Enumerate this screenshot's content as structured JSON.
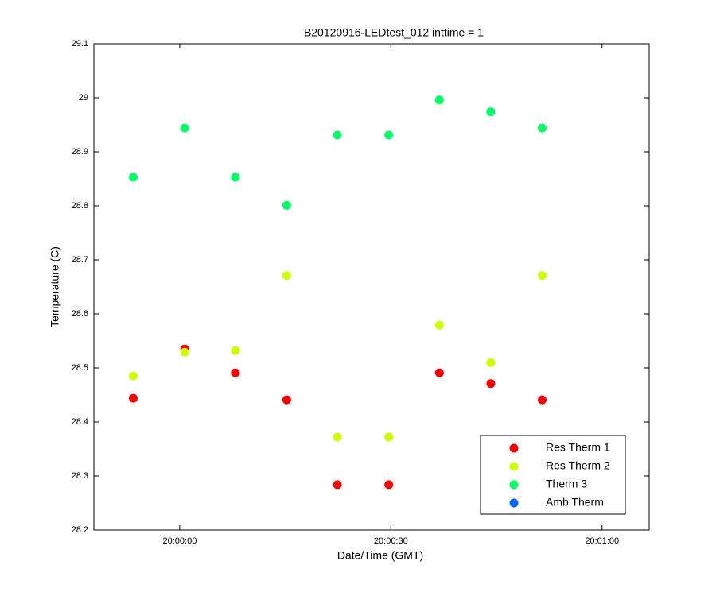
{
  "chart_data": {
    "type": "scatter",
    "title": "B20120916-LEDtest_012 inttime = 1",
    "xlabel": "Date/Time (GMT)",
    "ylabel": "Temperature (C)",
    "x": [
      71993.4,
      72000.7,
      72007.9,
      72015.2,
      72022.4,
      72029.7,
      72036.9,
      72044.2,
      72051.5
    ],
    "series": [
      {
        "name": "Res Therm 1",
        "color": "#ff0000",
        "values": [
          28.444,
          28.535,
          28.491,
          28.441,
          28.284,
          28.284,
          28.491,
          28.471,
          28.441
        ]
      },
      {
        "name": "Res Therm 2",
        "color": "#ccff00",
        "values": [
          28.485,
          28.529,
          28.532,
          28.671,
          28.372,
          28.372,
          28.579,
          28.51,
          28.671
        ]
      },
      {
        "name": "Therm 3",
        "color": "#00ff66",
        "values": [
          28.853,
          28.944,
          28.853,
          28.801,
          28.931,
          28.931,
          28.996,
          28.974,
          28.944
        ]
      },
      {
        "name": "Amb Therm",
        "color": "#0066ff",
        "values": [
          null,
          null,
          null,
          null,
          null,
          null,
          null,
          null,
          null
        ]
      }
    ],
    "xlim": [
      71987.8,
      72066.7
    ],
    "xticks": [
      {
        "value": 72000,
        "label": "20:00:00"
      },
      {
        "value": 72030,
        "label": "20:00:30"
      },
      {
        "value": 72060,
        "label": "20:01:00"
      }
    ],
    "ylim": [
      28.2,
      29.1
    ],
    "yticks": [
      28.2,
      28.3,
      28.4,
      28.5,
      28.6,
      28.7,
      28.8,
      28.9,
      29,
      29.1
    ],
    "legend": "lower-right"
  }
}
